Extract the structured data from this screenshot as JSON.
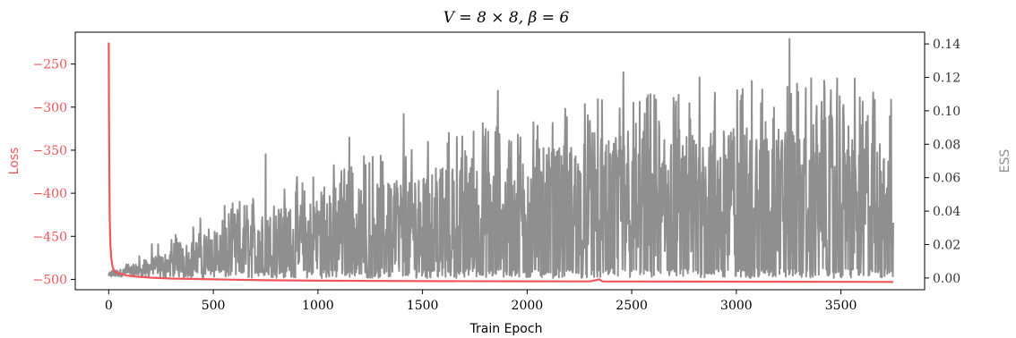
{
  "chart_data": {
    "type": "line",
    "title": "V = 8 × 8, β = 6",
    "xlabel": "Train Epoch",
    "ylabel_left": "Loss",
    "ylabel_right": "ESS",
    "xlim": [
      -160,
      3900
    ],
    "ylim_left": [
      -512,
      -213
    ],
    "ylim_right": [
      -0.007,
      0.147
    ],
    "x_ticks": [
      0,
      500,
      1000,
      1500,
      2000,
      2500,
      3000,
      3500
    ],
    "x_tick_labels": [
      "0",
      "500",
      "1000",
      "1500",
      "2000",
      "2500",
      "3000",
      "3500"
    ],
    "y_left_ticks": [
      -250,
      -300,
      -350,
      -400,
      -450,
      -500
    ],
    "y_left_tick_labels": [
      "−250",
      "−300",
      "−350",
      "−400",
      "−450",
      "−500"
    ],
    "y_right_ticks": [
      0.0,
      0.02,
      0.04,
      0.06,
      0.08,
      0.1,
      0.12,
      0.14
    ],
    "y_right_tick_labels": [
      "0.00",
      "0.02",
      "0.04",
      "0.06",
      "0.08",
      "0.10",
      "0.12",
      "0.14"
    ],
    "grid": false,
    "colors": {
      "loss": "#f0565a",
      "ess": "#8f8f8f",
      "axes": "#000000"
    },
    "series": [
      {
        "axis": "left",
        "x": [
          0,
          1,
          3,
          5,
          8,
          12,
          18,
          25,
          35,
          50,
          75,
          100,
          150,
          200,
          300,
          500,
          750,
          1000,
          1500,
          2000,
          2300,
          2345,
          2360,
          2380,
          2500,
          3000,
          3500,
          3750
        ],
        "y": [
          -225,
          -300,
          -380,
          -430,
          -460,
          -475,
          -485,
          -490,
          -492,
          -493,
          -495,
          -496,
          -497,
          -498,
          -499,
          -500,
          -501,
          -501.5,
          -502,
          -502.2,
          -502.3,
          -500,
          -502.3,
          -502.4,
          -502.5,
          -502.7,
          -502.9,
          -503
        ]
      },
      {
        "axis": "right",
        "x": [
          0,
          250,
          500,
          750,
          1000,
          1250,
          1500,
          1750,
          2000,
          2250,
          2500,
          2750,
          3000,
          3250,
          3500,
          3750
        ],
        "y": [
          0.002,
          0.01,
          0.02,
          0.028,
          0.035,
          0.04,
          0.045,
          0.05,
          0.055,
          0.057,
          0.06,
          0.062,
          0.064,
          0.066,
          0.07,
          0.05
        ],
        "envelope_max": [
          0.003,
          0.025,
          0.04,
          0.055,
          0.066,
          0.077,
          0.086,
          0.094,
          0.1,
          0.106,
          0.11,
          0.113,
          0.117,
          0.12,
          0.123,
          0.11
        ],
        "peaks": [
          {
            "x": 750,
            "y": 0.074
          },
          {
            "x": 1150,
            "y": 0.084
          },
          {
            "x": 1410,
            "y": 0.098
          },
          {
            "x": 1860,
            "y": 0.112
          },
          {
            "x": 2460,
            "y": 0.123
          },
          {
            "x": 2590,
            "y": 0.11
          },
          {
            "x": 2825,
            "y": 0.12
          },
          {
            "x": 3030,
            "y": 0.113
          },
          {
            "x": 3180,
            "y": 0.102
          },
          {
            "x": 3255,
            "y": 0.143
          },
          {
            "x": 3420,
            "y": 0.118
          },
          {
            "x": 3655,
            "y": 0.111
          }
        ]
      }
    ]
  }
}
